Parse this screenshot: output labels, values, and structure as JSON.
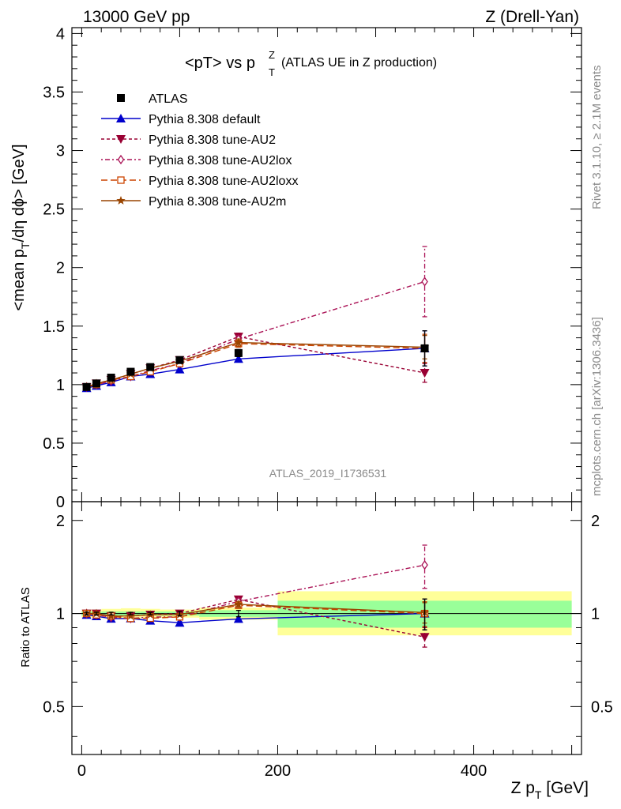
{
  "header": {
    "left": "13000 GeV pp",
    "right": "Z (Drell-Yan)"
  },
  "plot_title": {
    "main": "<pT> vs p",
    "sup": "Z",
    "sub": "T",
    "extra": "(ATLAS UE in Z production)"
  },
  "side_labels": {
    "rivet": "Rivet 3.1.10, ≥ 2.1M events",
    "mcplots": "mcplots.cern.ch [arXiv:1306.3436]"
  },
  "watermark": "ATLAS_2019_I1736531",
  "axes": {
    "ylabel_main_pre": "<mean p",
    "ylabel_main_sub": "T",
    "ylabel_main_post": "/dη dϕ> [GeV]",
    "ylabel_ratio": "Ratio to ATLAS",
    "xlabel_pre": "Z p",
    "xlabel_sub": "T",
    "xlabel_post": " [GeV]"
  },
  "colors": {
    "ATLAS": "#000000",
    "default": "#0000cc",
    "AU2": "#990033",
    "AU2lox": "#aa1155",
    "AU2loxx": "#cc4400",
    "AU2m": "#994400",
    "band_inner": "#99ff99",
    "band_outer": "#ffff99"
  },
  "chart_data": {
    "type": "line",
    "xlim": [
      -10,
      510
    ],
    "main_ylim": [
      0,
      4.05
    ],
    "ratio_ylim": [
      0.35,
      2.3
    ],
    "main_yticks": [
      "0",
      "0.5",
      "1",
      "1.5",
      "2",
      "2.5",
      "3",
      "3.5",
      "4"
    ],
    "ratio_yticks": [
      "0.5",
      "1",
      "2"
    ],
    "xticks": [
      "0",
      "200",
      "400"
    ],
    "x": [
      5,
      15,
      30,
      50,
      70,
      100,
      160,
      350
    ],
    "series": [
      {
        "name": "ATLAS",
        "values": [
          0.98,
          1.01,
          1.06,
          1.11,
          1.15,
          1.21,
          1.27,
          1.31
        ],
        "errors": [
          0.01,
          0.01,
          0.01,
          0.01,
          0.01,
          0.02,
          0.03,
          0.15
        ]
      },
      {
        "name": "Pythia 8.308 default",
        "values": [
          0.97,
          0.99,
          1.02,
          1.07,
          1.09,
          1.13,
          1.22,
          1.31
        ],
        "errors": [
          0.01,
          0.01,
          0.01,
          0.01,
          0.01,
          0.01,
          0.02,
          0.15
        ]
      },
      {
        "name": "Pythia 8.308 tune-AU2",
        "values": [
          0.98,
          1.01,
          1.04,
          1.09,
          1.14,
          1.21,
          1.41,
          1.1
        ],
        "errors": [
          0.01,
          0.01,
          0.01,
          0.01,
          0.01,
          0.01,
          0.03,
          0.08
        ]
      },
      {
        "name": "Pythia 8.308 tune-AU2lox",
        "values": [
          0.98,
          1.0,
          1.03,
          1.07,
          1.12,
          1.18,
          1.39,
          1.88
        ],
        "errors": [
          0.01,
          0.01,
          0.01,
          0.01,
          0.01,
          0.01,
          0.03,
          0.3
        ]
      },
      {
        "name": "Pythia 8.308 tune-AU2loxx",
        "values": [
          0.98,
          1.0,
          1.04,
          1.07,
          1.11,
          1.18,
          1.35,
          1.31
        ],
        "errors": [
          0.01,
          0.01,
          0.01,
          0.01,
          0.01,
          0.01,
          0.03,
          0.12
        ]
      },
      {
        "name": "Pythia 8.308 tune-AU2m",
        "values": [
          0.98,
          1.01,
          1.04,
          1.09,
          1.14,
          1.2,
          1.36,
          1.32
        ],
        "errors": [
          0.01,
          0.01,
          0.01,
          0.01,
          0.01,
          0.01,
          0.03,
          0.1
        ]
      }
    ],
    "ratio_bands": [
      {
        "x0": 0,
        "x1": 10,
        "inner": [
          0.985,
          1.015
        ],
        "outer": [
          0.97,
          1.03
        ]
      },
      {
        "x0": 10,
        "x1": 20,
        "inner": [
          0.985,
          1.015
        ],
        "outer": [
          0.97,
          1.03
        ]
      },
      {
        "x0": 20,
        "x1": 40,
        "inner": [
          0.985,
          1.015
        ],
        "outer": [
          0.965,
          1.035
        ]
      },
      {
        "x0": 40,
        "x1": 60,
        "inner": [
          0.985,
          1.015
        ],
        "outer": [
          0.96,
          1.04
        ]
      },
      {
        "x0": 60,
        "x1": 80,
        "inner": [
          0.985,
          1.015
        ],
        "outer": [
          0.965,
          1.035
        ]
      },
      {
        "x0": 80,
        "x1": 120,
        "inner": [
          0.985,
          1.015
        ],
        "outer": [
          0.97,
          1.03
        ]
      },
      {
        "x0": 120,
        "x1": 200,
        "inner": [
          0.975,
          1.025
        ],
        "outer": [
          0.955,
          1.045
        ]
      },
      {
        "x0": 200,
        "x1": 500,
        "inner": [
          0.9,
          1.1
        ],
        "outer": [
          0.85,
          1.18
        ]
      }
    ]
  }
}
